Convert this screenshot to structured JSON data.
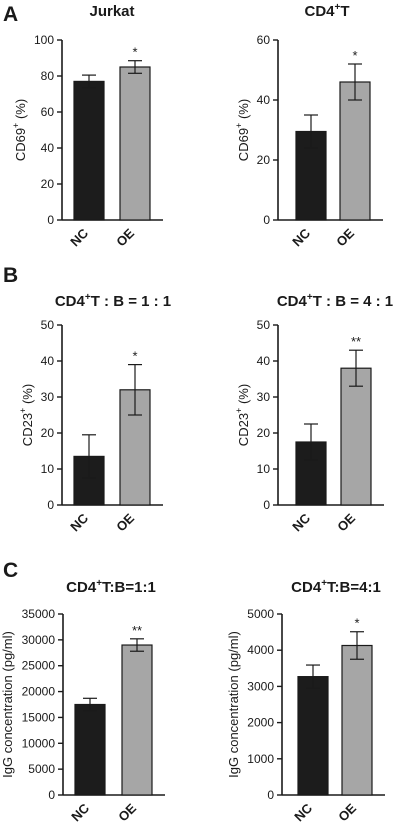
{
  "panels": [
    {
      "letter": "A"
    },
    {
      "letter": "B"
    },
    {
      "letter": "C"
    }
  ],
  "chart_data": [
    {
      "type": "bar",
      "title": "Jurkat",
      "title_sup": "",
      "ylabel": "CD69",
      "ylabel_sup": "+",
      "ylabel_suffix": " (%)",
      "categories": [
        "NC",
        "OE"
      ],
      "values": [
        77,
        85
      ],
      "errors": [
        3.5,
        3.5
      ],
      "significance": [
        "",
        "*"
      ],
      "ylim": [
        0,
        100
      ],
      "yticks": [
        "0",
        "20",
        "40",
        "60",
        "80",
        "100"
      ],
      "bar_colors": [
        "#1c1c1c",
        "#a6a6a6"
      ]
    },
    {
      "type": "bar",
      "title": "CD4",
      "title_sup": "+",
      "title_rest": "T",
      "ylabel": "CD69",
      "ylabel_sup": "+",
      "ylabel_suffix": " (%)",
      "categories": [
        "NC",
        "OE"
      ],
      "values": [
        29.5,
        46
      ],
      "errors": [
        5.5,
        6
      ],
      "significance": [
        "",
        "*"
      ],
      "ylim": [
        0,
        60
      ],
      "yticks": [
        "0",
        "20",
        "40",
        "60"
      ],
      "bar_colors": [
        "#1c1c1c",
        "#a6a6a6"
      ]
    },
    {
      "type": "bar",
      "title": "CD4",
      "title_sup": "+",
      "title_rest": "T : B = 1 : 1",
      "ylabel": "CD23",
      "ylabel_sup": "+",
      "ylabel_suffix": " (%)",
      "categories": [
        "NC",
        "OE"
      ],
      "values": [
        13.5,
        32
      ],
      "errors": [
        6,
        7
      ],
      "significance": [
        "",
        "*"
      ],
      "ylim": [
        0,
        50
      ],
      "yticks": [
        "0",
        "10",
        "20",
        "30",
        "40",
        "50"
      ],
      "bar_colors": [
        "#1c1c1c",
        "#a6a6a6"
      ]
    },
    {
      "type": "bar",
      "title": "CD4",
      "title_sup": "+",
      "title_rest": "T : B = 4 : 1",
      "ylabel": "CD23",
      "ylabel_sup": "+",
      "ylabel_suffix": " (%)",
      "categories": [
        "NC",
        "OE"
      ],
      "values": [
        17.5,
        38
      ],
      "errors": [
        5,
        5
      ],
      "significance": [
        "",
        "**"
      ],
      "ylim": [
        0,
        50
      ],
      "yticks": [
        "0",
        "10",
        "20",
        "30",
        "40",
        "50"
      ],
      "bar_colors": [
        "#1c1c1c",
        "#a6a6a6"
      ]
    },
    {
      "type": "bar",
      "title": "CD4",
      "title_sup": "+",
      "title_rest": "T:B=1:1",
      "ylabel": "IgG concentration (pg/ml)",
      "ylabel_sup": "",
      "ylabel_suffix": "",
      "categories": [
        "NC",
        "OE"
      ],
      "values": [
        17500,
        29000
      ],
      "errors": [
        1200,
        1200
      ],
      "significance": [
        "",
        "**"
      ],
      "ylim": [
        0,
        35000
      ],
      "yticks": [
        "0",
        "5000",
        "10000",
        "15000",
        "20000",
        "25000",
        "30000",
        "35000"
      ],
      "bar_colors": [
        "#1c1c1c",
        "#a6a6a6"
      ]
    },
    {
      "type": "bar",
      "title": "CD4",
      "title_sup": "+",
      "title_rest": "T:B=4:1",
      "ylabel": "IgG concentration (pg/ml)",
      "ylabel_sup": "",
      "ylabel_suffix": "",
      "categories": [
        "NC",
        "OE"
      ],
      "values": [
        3270,
        4130
      ],
      "errors": [
        320,
        380
      ],
      "significance": [
        "",
        "*"
      ],
      "ylim": [
        0,
        5000
      ],
      "yticks": [
        "0",
        "1000",
        "2000",
        "3000",
        "4000",
        "5000"
      ],
      "bar_colors": [
        "#1c1c1c",
        "#a6a6a6"
      ]
    }
  ]
}
